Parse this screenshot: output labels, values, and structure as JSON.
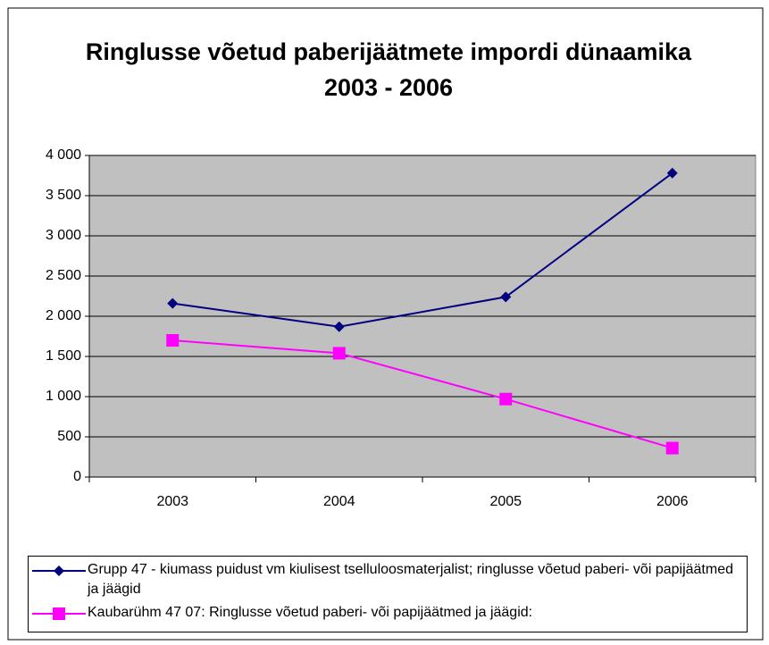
{
  "chart_data": {
    "type": "line",
    "title": "Ringlusse võetud paberijäätmete impordi dünaamika 2003 - 2006",
    "categories": [
      "2003",
      "2004",
      "2005",
      "2006"
    ],
    "series": [
      {
        "name": "Grupp 47 - kiumass puidust vm kiulisest tselluloosmaterjalist; ringlusse võetud paberi- või papijäätmed ja jäägid",
        "color": "#000080",
        "marker": "diamond",
        "values": [
          2160,
          1870,
          2240,
          3780
        ]
      },
      {
        "name": "Kaubarühm 47 07: Ringlusse võetud paberi- või papijäätmed ja jäägid:",
        "color": "#ff00ff",
        "marker": "square",
        "values": [
          1700,
          1540,
          970,
          360
        ]
      }
    ],
    "ylim": [
      0,
      4000
    ],
    "yticks": [
      0,
      500,
      {
        "value": 1000,
        "label": "1 000"
      },
      {
        "value": 1500,
        "label": "1 500"
      },
      {
        "value": 2000,
        "label": "2 000"
      },
      {
        "value": 2500,
        "label": "2 500"
      },
      {
        "value": 3000,
        "label": "3 000"
      },
      {
        "value": 3500,
        "label": "3 500"
      },
      {
        "value": 4000,
        "label": "4 000"
      }
    ],
    "grid": true,
    "plot_background": "#c0c0c0",
    "legend": "bottom"
  }
}
